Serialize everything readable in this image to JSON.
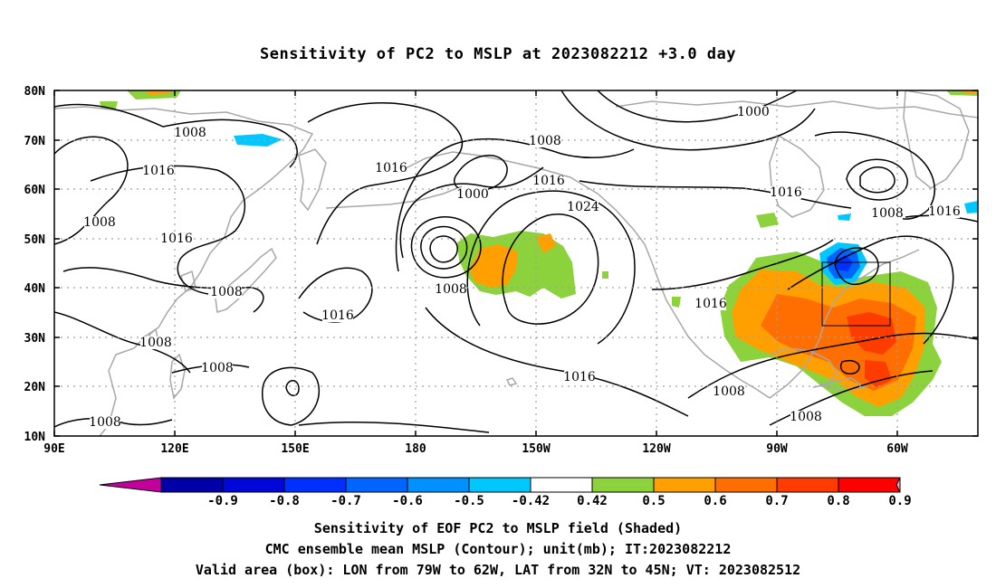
{
  "title": "Sensitivity of PC2 to MSLP at 2023082212 +3.0 day",
  "lat_labels": [
    "10N",
    "20N",
    "30N",
    "40N",
    "50N",
    "60N",
    "70N",
    "80N"
  ],
  "lon_labels": [
    "90E",
    "120E",
    "150E",
    "180",
    "150W",
    "120W",
    "90W",
    "60W"
  ],
  "contour_labels": [
    "1008",
    "1008",
    "1008",
    "1008",
    "1008",
    "1008",
    "1008",
    "1008",
    "1008",
    "1008",
    "1008",
    "1016",
    "1016",
    "1016",
    "1016",
    "1016",
    "1016",
    "1016",
    "1016",
    "1016",
    "1000",
    "1000",
    "1024"
  ],
  "colorbar": {
    "ticks": [
      "-0.9",
      "-0.8",
      "-0.7",
      "-0.6",
      "-0.5",
      "-0.42",
      "0.42",
      "0.5",
      "0.6",
      "0.7",
      "0.8",
      "0.9"
    ],
    "colors": [
      "#c4009c",
      "#0000a8",
      "#0008d8",
      "#0030ff",
      "#0064ff",
      "#0090ff",
      "#00c8ff",
      "#ffffff",
      "#8cd23c",
      "#ffa000",
      "#ff6e00",
      "#ff3c00",
      "#ff0000",
      "#ffa0d0"
    ]
  },
  "shading_colors": {
    "green": "#8cd23c",
    "orange": "#ffa000",
    "dorange": "#ff6e00",
    "red": "#ff3c00",
    "cyan": "#00c8ff",
    "blue": "#0064ff",
    "dblue": "#0030ff"
  },
  "captions": [
    "Sensitivity of EOF PC2 to MSLP field (Shaded)",
    "CMC ensemble mean MSLP (Contour); unit(mb); IT:2023082212",
    "Valid area (box): LON from 79W to 62W, LAT from 32N to 45N; VT: 2023082512"
  ]
}
